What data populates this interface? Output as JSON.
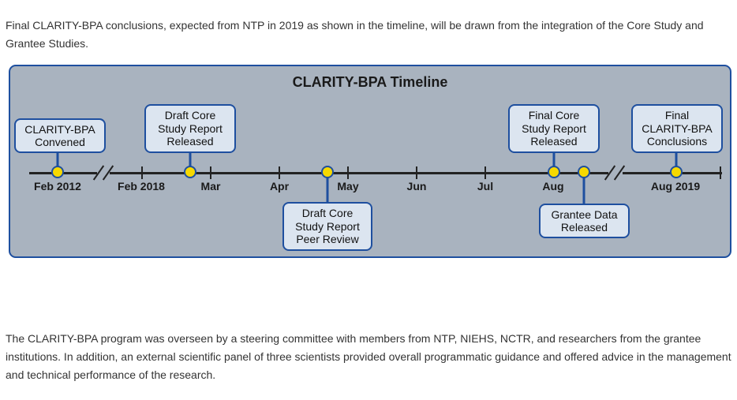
{
  "intro_text": "Final CLARITY-BPA conclusions, expected from NTP in 2019 as shown in the timeline, will be drawn from the integration of the Core Study and Grantee Studies.",
  "timeline": {
    "title": "CLARITY-BPA Timeline",
    "ticks": [
      "Feb 2012",
      "Feb 2018",
      "Mar",
      "Apr",
      "May",
      "Jun",
      "Jul",
      "Aug",
      "Aug 2019"
    ],
    "events": [
      {
        "lines": [
          "CLARITY-BPA",
          "Convened"
        ]
      },
      {
        "lines": [
          "Draft Core",
          "Study Report",
          "Released"
        ]
      },
      {
        "lines": [
          "Draft Core",
          "Study Report",
          "Peer Review"
        ]
      },
      {
        "lines": [
          "Final Core",
          "Study Report",
          "Released"
        ]
      },
      {
        "lines": [
          "Grantee Data",
          "Released"
        ]
      },
      {
        "lines": [
          "Final",
          "CLARITY-BPA",
          "Conclusions"
        ]
      }
    ],
    "colors": {
      "panel": "#a9b3bf",
      "border": "#1e4f9f",
      "box": "#dce5f0",
      "dot": "#f7d900"
    }
  },
  "closing_text": "The CLARITY-BPA program was overseen by a steering committee with members from NTP, NIEHS, NCTR, and researchers from the grantee institutions. In addition, an external scientific panel of three scientists provided overall programmatic guidance and offered advice in the management and technical performance of the research."
}
